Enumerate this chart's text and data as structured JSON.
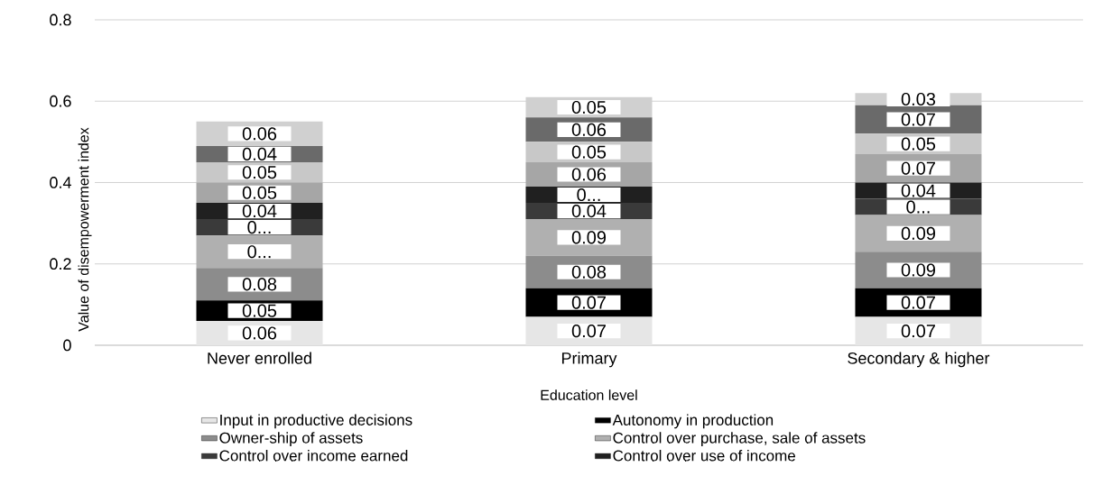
{
  "chart_data": {
    "type": "bar",
    "stacked": true,
    "xlabel": "Education level",
    "ylabel": "Value of disempowerment index",
    "categories": [
      "Never enrolled",
      "Primary",
      "Secondary & higher"
    ],
    "ylim": [
      0,
      0.8
    ],
    "yticks": [
      0,
      0.2,
      0.4,
      0.6,
      0.8
    ],
    "grid": "y",
    "legend": "bottom",
    "series": [
      {
        "name": "Input in productive decisions",
        "color": "#e6e6e6",
        "values": [
          0.06,
          0.07,
          0.07
        ],
        "value_labels": [
          "0.06",
          "0.07",
          "0.07"
        ]
      },
      {
        "name": "Autonomy in production",
        "color": "#000000",
        "values": [
          0.05,
          0.07,
          0.07
        ],
        "value_labels": [
          "0.05",
          "0.07",
          "0.07"
        ]
      },
      {
        "name": "Owner-ship of assets",
        "color": "#8c8c8c",
        "values": [
          0.08,
          0.08,
          0.09
        ],
        "value_labels": [
          "0.08",
          "0.08",
          "0.09"
        ]
      },
      {
        "name": "Control over purchase, sale of assets",
        "color": "#b0b0b0",
        "values": [
          0.08,
          0.09,
          0.09
        ],
        "value_labels": [
          "0...",
          "0.09",
          "0.09"
        ]
      },
      {
        "name": "Control over income earned",
        "color": "#3a3a3a",
        "values": [
          0.04,
          0.04,
          0.04
        ],
        "value_labels": [
          "0...",
          "0.04",
          "0..."
        ]
      },
      {
        "name": "Control over use of income",
        "color": "#202020",
        "values": [
          0.04,
          0.04,
          0.04
        ],
        "value_labels": [
          "0.04",
          "0...",
          "0.04"
        ]
      },
      {
        "color": "#a6a6a6",
        "values": [
          0.05,
          0.06,
          0.07
        ],
        "value_labels": [
          "0.05",
          "0.06",
          "0.07"
        ]
      },
      {
        "color": "#c8c8c8",
        "values": [
          0.05,
          0.05,
          0.05
        ],
        "value_labels": [
          "0.05",
          "0.05",
          "0.05"
        ]
      },
      {
        "color": "#6a6a6a",
        "values": [
          0.04,
          0.06,
          0.07
        ],
        "value_labels": [
          "0.04",
          "0.06",
          "0.07"
        ]
      },
      {
        "color": "#d0d0d0",
        "values": [
          0.06,
          0.05,
          0.03
        ],
        "value_labels": [
          "0.06",
          "0.05",
          "0.03"
        ]
      }
    ]
  }
}
